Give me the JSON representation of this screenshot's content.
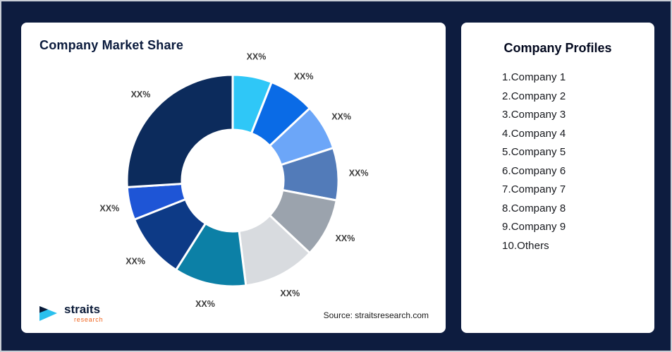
{
  "page": {
    "background": "#0D1C3F"
  },
  "market_share_panel": {
    "title": "Company Market Share",
    "source": "Source: straitsresearch.com",
    "logo": {
      "name": "straits",
      "sub": "research"
    }
  },
  "profiles_panel": {
    "title": "Company Profiles",
    "items": [
      "1.Company 1",
      "2.Company 2",
      "3.Company 3",
      "4.Company 4",
      "5.Company 5",
      "6.Company 6",
      "7.Company 7",
      "8.Company 8",
      "9.Company 9",
      "10.Others"
    ]
  },
  "chart_data": {
    "type": "pie",
    "subtype": "donut",
    "title": "Company Market Share",
    "value_label_text": "XX%",
    "unit": "percent",
    "legend_position": "none",
    "start_angle_deg_clockwise_from_top": 0,
    "segments": [
      {
        "name": "Company 1",
        "label": "XX%",
        "value": 6,
        "color": "#2FC7F7"
      },
      {
        "name": "Company 2",
        "label": "XX%",
        "value": 7,
        "color": "#0A6BE6"
      },
      {
        "name": "Company 3",
        "label": "XX%",
        "value": 7,
        "color": "#6CA6F8"
      },
      {
        "name": "Company 4",
        "label": "XX%",
        "value": 8,
        "color": "#527BB9"
      },
      {
        "name": "Company 5",
        "label": "XX%",
        "value": 9,
        "color": "#9BA3AD"
      },
      {
        "name": "Company 6",
        "label": "XX%",
        "value": 11,
        "color": "#D8DBDF"
      },
      {
        "name": "Company 7",
        "label": "XX%",
        "value": 11,
        "color": "#0C80A6"
      },
      {
        "name": "Company 8",
        "label": "XX%",
        "value": 10,
        "color": "#0D3A86"
      },
      {
        "name": "Company 9",
        "label": "XX%",
        "value": 5,
        "color": "#1E55D6"
      },
      {
        "name": "Others",
        "label": "XX%",
        "value": 26,
        "color": "#0C2B5C"
      }
    ]
  }
}
